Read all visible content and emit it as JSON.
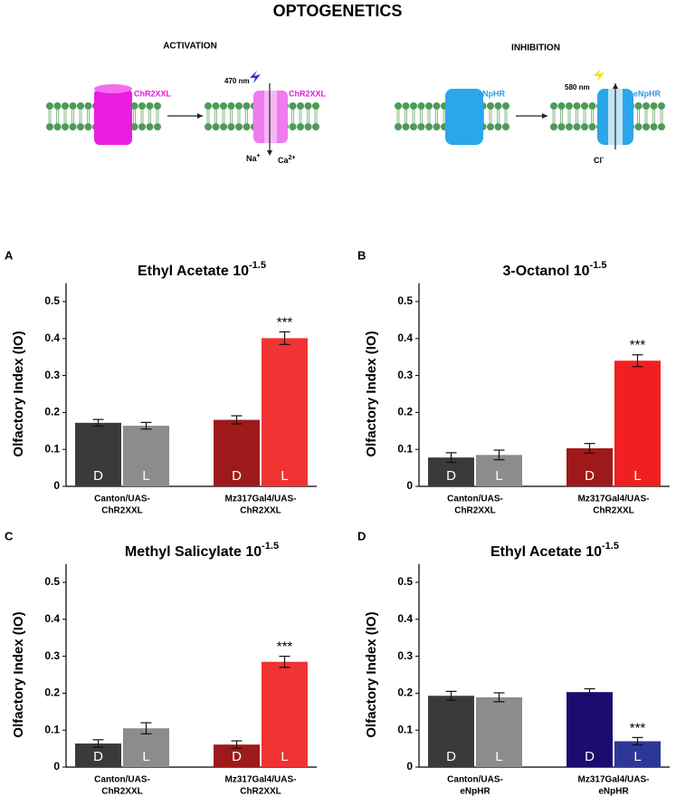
{
  "header": {
    "title": "OPTOGENETICS"
  },
  "activation": {
    "heading": "ACTIVATION",
    "channel_label_closed": "ChR2XXL",
    "channel_label_open": "ChR2XXL",
    "wavelength": "470 nm",
    "ions": [
      {
        "base": "Na",
        "sup": "+"
      },
      {
        "base": "Ca",
        "sup": "2+"
      }
    ]
  },
  "inhibition": {
    "heading": "INHIBITION",
    "channel_label_closed": "eNpHR",
    "channel_label_open": "eNpHR",
    "wavelength": "580 nm",
    "ions": [
      {
        "base": "Cl",
        "sup": "-"
      }
    ]
  },
  "chart_data": [
    {
      "type": "bar",
      "panel": "A",
      "title": "Ethyl Acetate 10",
      "title_exponent": "-1.5",
      "y_label": "Olfactory Index (IO)",
      "categories": [
        [
          "Canton/UAS-",
          "ChR2XXL"
        ],
        [
          "Mz317Gal4/UAS-",
          "ChR2XXL"
        ]
      ],
      "series": [
        {
          "name": "D",
          "colors": [
            "#3a3a3a",
            "#9e1a1a"
          ],
          "values": [
            0.172,
            0.18
          ],
          "errors": [
            0.009,
            0.011
          ]
        },
        {
          "name": "L",
          "colors": [
            "#8c8c8c",
            "#f03333"
          ],
          "values": [
            0.164,
            0.401
          ],
          "errors": [
            0.009,
            0.017
          ]
        }
      ],
      "annotations": [
        {
          "text": "***",
          "series": 1,
          "index": 1
        }
      ],
      "ylim": [
        0,
        0.55
      ],
      "yticks": [
        0,
        0.1,
        0.2,
        0.3,
        0.4,
        0.5
      ]
    },
    {
      "type": "bar",
      "panel": "B",
      "title": "3-Octanol 10",
      "title_exponent": "-1.5",
      "y_label": "Olfactory Index (IO)",
      "categories": [
        [
          "Canton/UAS-",
          "ChR2XXL"
        ],
        [
          "Mz317Gal4/UAS-",
          "ChR2XXL"
        ]
      ],
      "series": [
        {
          "name": "D",
          "colors": [
            "#3a3a3a",
            "#9e1a1a"
          ],
          "values": [
            0.078,
            0.103
          ],
          "errors": [
            0.013,
            0.013
          ]
        },
        {
          "name": "L",
          "colors": [
            "#8c8c8c",
            "#f02020"
          ],
          "values": [
            0.085,
            0.34
          ],
          "errors": [
            0.013,
            0.016
          ]
        }
      ],
      "annotations": [
        {
          "text": "***",
          "series": 1,
          "index": 1
        }
      ],
      "ylim": [
        0,
        0.55
      ],
      "yticks": [
        0,
        0.1,
        0.2,
        0.3,
        0.4,
        0.5
      ]
    },
    {
      "type": "bar",
      "panel": "C",
      "title": "Methyl Salicylate 10",
      "title_exponent": "-1.5",
      "y_label": "Olfactory Index (IO)",
      "categories": [
        [
          "Canton/UAS-",
          "ChR2XXL"
        ],
        [
          "Mz317Gal4/UAS-",
          "ChR2XXL"
        ]
      ],
      "series": [
        {
          "name": "D",
          "colors": [
            "#3a3a3a",
            "#9e1a1a"
          ],
          "values": [
            0.064,
            0.061
          ],
          "errors": [
            0.01,
            0.01
          ]
        },
        {
          "name": "L",
          "colors": [
            "#8c8c8c",
            "#f03333"
          ],
          "values": [
            0.105,
            0.285
          ],
          "errors": [
            0.015,
            0.015
          ]
        }
      ],
      "annotations": [
        {
          "text": "***",
          "series": 1,
          "index": 1
        }
      ],
      "ylim": [
        0,
        0.55
      ],
      "yticks": [
        0,
        0.1,
        0.2,
        0.3,
        0.4,
        0.5
      ]
    },
    {
      "type": "bar",
      "panel": "D",
      "title": "Ethyl Acetate 10",
      "title_exponent": "-1.5",
      "y_label": "Olfactory Index (IO)",
      "categories": [
        [
          "Canton/UAS-",
          "eNpHR"
        ],
        [
          "Mz317Gal4/UAS-",
          "eNpHR"
        ]
      ],
      "series": [
        {
          "name": "D",
          "colors": [
            "#3a3a3a",
            "#1c0c70"
          ],
          "values": [
            0.193,
            0.203
          ],
          "errors": [
            0.012,
            0.009
          ]
        },
        {
          "name": "L",
          "colors": [
            "#8c8c8c",
            "#2e3796"
          ],
          "values": [
            0.189,
            0.07
          ],
          "errors": [
            0.012,
            0.01
          ]
        }
      ],
      "annotations": [
        {
          "text": "***",
          "series": 1,
          "index": 1
        }
      ],
      "ylim": [
        0,
        0.55
      ],
      "yticks": [
        0,
        0.1,
        0.2,
        0.3,
        0.4,
        0.5
      ]
    }
  ]
}
